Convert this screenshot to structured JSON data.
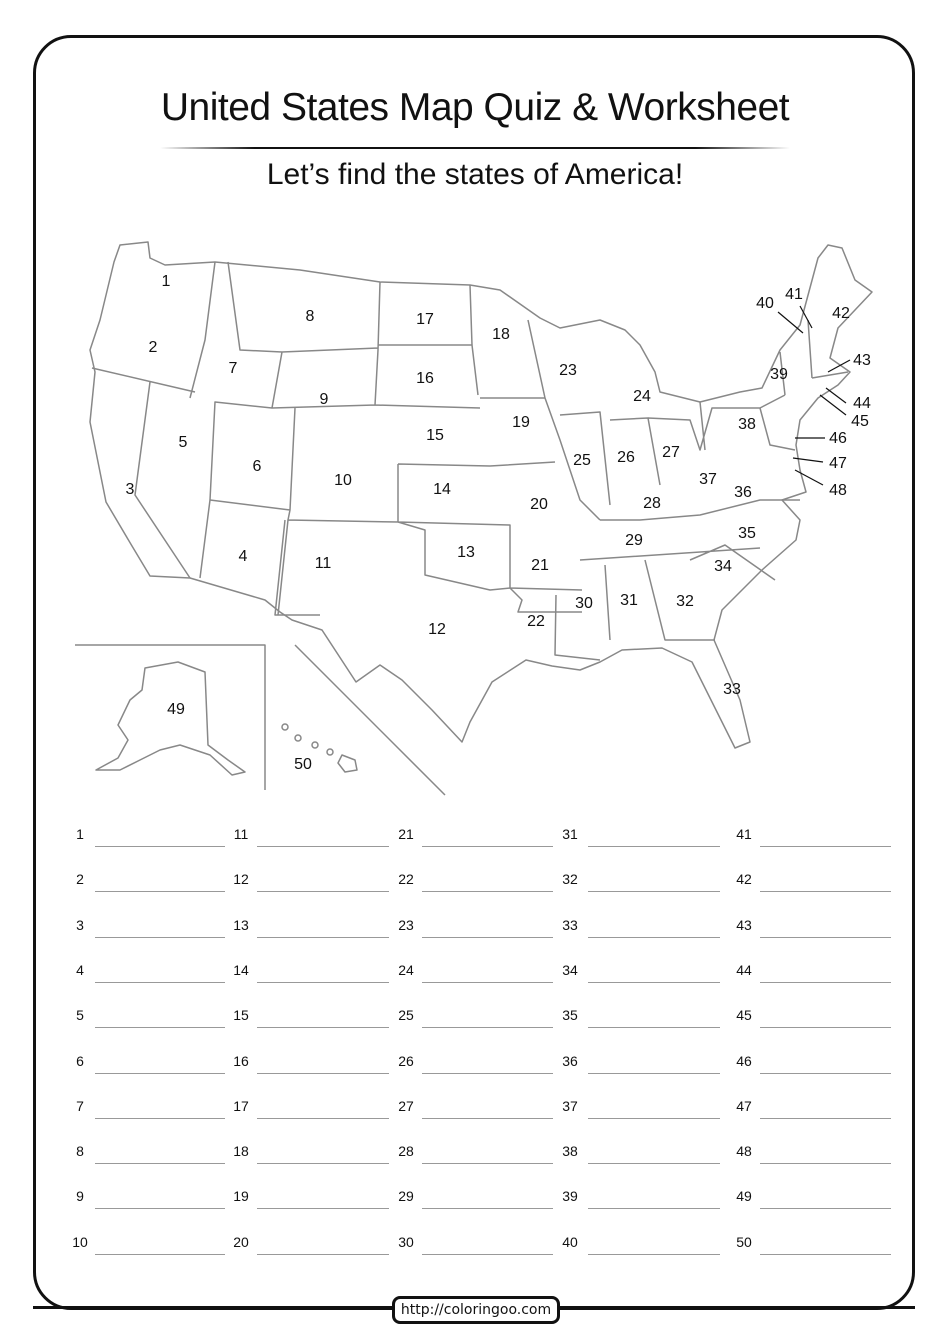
{
  "title": "United States Map Quiz & Worksheet",
  "subtitle": "Let’s find the states of America!",
  "map": {
    "state_numbers": [
      "1",
      "2",
      "3",
      "4",
      "5",
      "6",
      "7",
      "8",
      "9",
      "10",
      "11",
      "12",
      "13",
      "14",
      "15",
      "16",
      "17",
      "18",
      "19",
      "20",
      "21",
      "22",
      "23",
      "24",
      "25",
      "26",
      "27",
      "28",
      "29",
      "30",
      "31",
      "32",
      "33",
      "34",
      "35",
      "36",
      "37",
      "38",
      "39",
      "40",
      "41",
      "42",
      "43",
      "44",
      "45",
      "46",
      "47",
      "48",
      "49",
      "50"
    ]
  },
  "answers": {
    "numbers": [
      "1",
      "2",
      "3",
      "4",
      "5",
      "6",
      "7",
      "8",
      "9",
      "10",
      "11",
      "12",
      "13",
      "14",
      "15",
      "16",
      "17",
      "18",
      "19",
      "20",
      "21",
      "22",
      "23",
      "24",
      "25",
      "26",
      "27",
      "28",
      "29",
      "30",
      "31",
      "32",
      "33",
      "34",
      "35",
      "36",
      "37",
      "38",
      "39",
      "40",
      "41",
      "42",
      "43",
      "44",
      "45",
      "46",
      "47",
      "48",
      "49",
      "50"
    ]
  },
  "footer": {
    "url": "http://coloringoo.com"
  }
}
